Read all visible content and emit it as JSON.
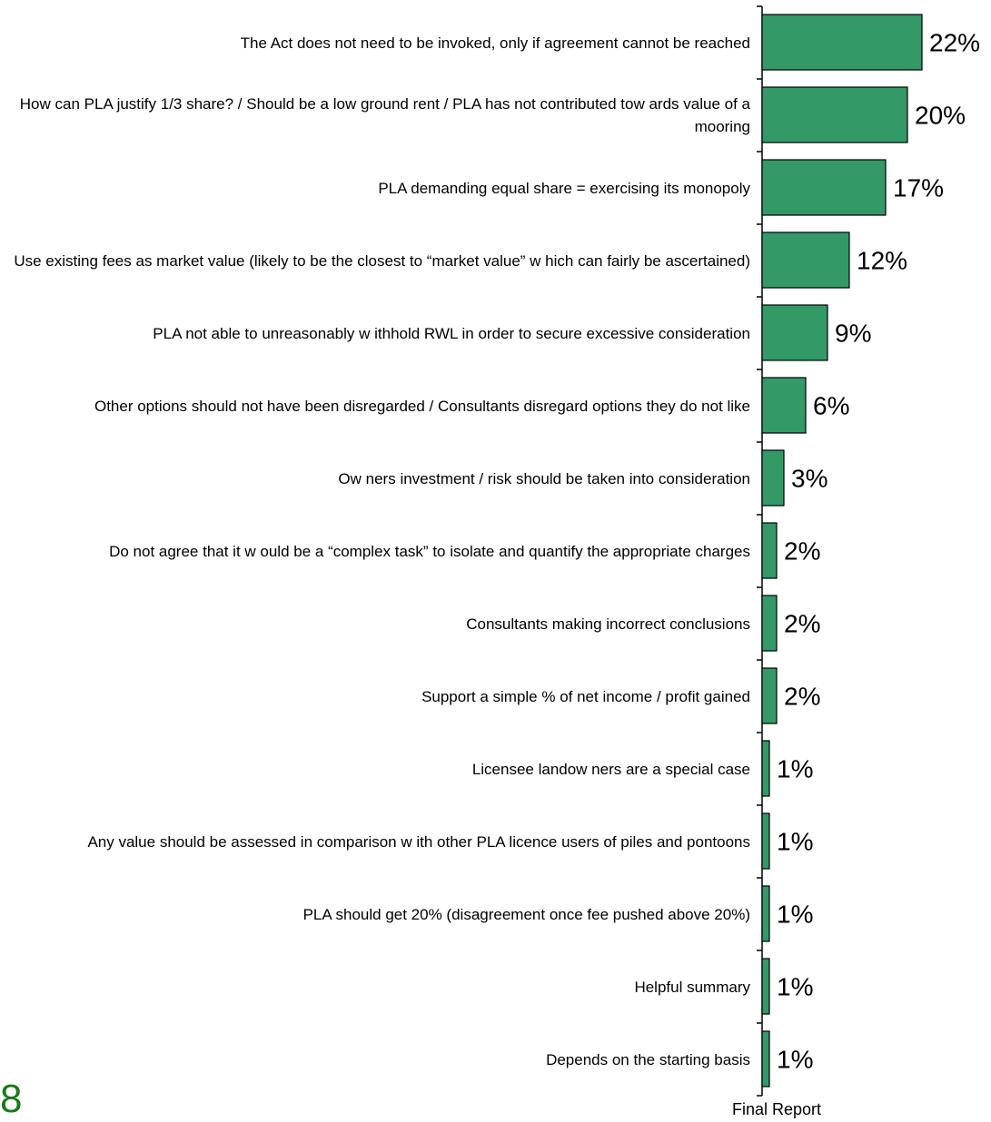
{
  "chart_data": {
    "type": "bar",
    "orientation": "horizontal",
    "unit": "%",
    "bar_color": "#339966",
    "categories": [
      "The Act does not need to be invoked, only if agreement cannot be reached",
      "How can PLA justify 1/3 share? / Should be a low ground rent / PLA has not contributed tow ards value of a mooring",
      "PLA demanding equal share = exercising its monopoly",
      "Use existing fees as market value (likely to be the closest to “market value” w hich can fairly be ascertained)",
      "PLA not able to unreasonably w ithhold RWL in order to secure excessive consideration",
      "Other options should not have been disregarded / Consultants disregard options they do not like",
      "Ow ners investment / risk should be taken into consideration",
      "Do not agree that it w ould be a “complex task” to isolate and quantify the appropriate charges",
      "Consultants making incorrect conclusions",
      "Support a simple % of net income / profit gained",
      "Licensee landow ners are a special case",
      "Any value should be assessed in comparison w ith other PLA licence users of piles and pontoons",
      "PLA should get 20% (disagreement once fee pushed above 20%)",
      "Helpful summary",
      "Depends on the starting basis"
    ],
    "values": [
      22,
      20,
      17,
      12,
      9,
      6,
      3,
      2,
      2,
      2,
      1,
      1,
      1,
      1,
      1
    ],
    "value_labels": [
      "22%",
      "20%",
      "17%",
      "12%",
      "9%",
      "6%",
      "3%",
      "2%",
      "2%",
      "2%",
      "1%",
      "1%",
      "1%",
      "1%",
      "1%"
    ],
    "xlim": [
      0,
      22
    ],
    "grid": false,
    "legend": "none"
  },
  "page_mark": "8",
  "footer": "Final Report"
}
